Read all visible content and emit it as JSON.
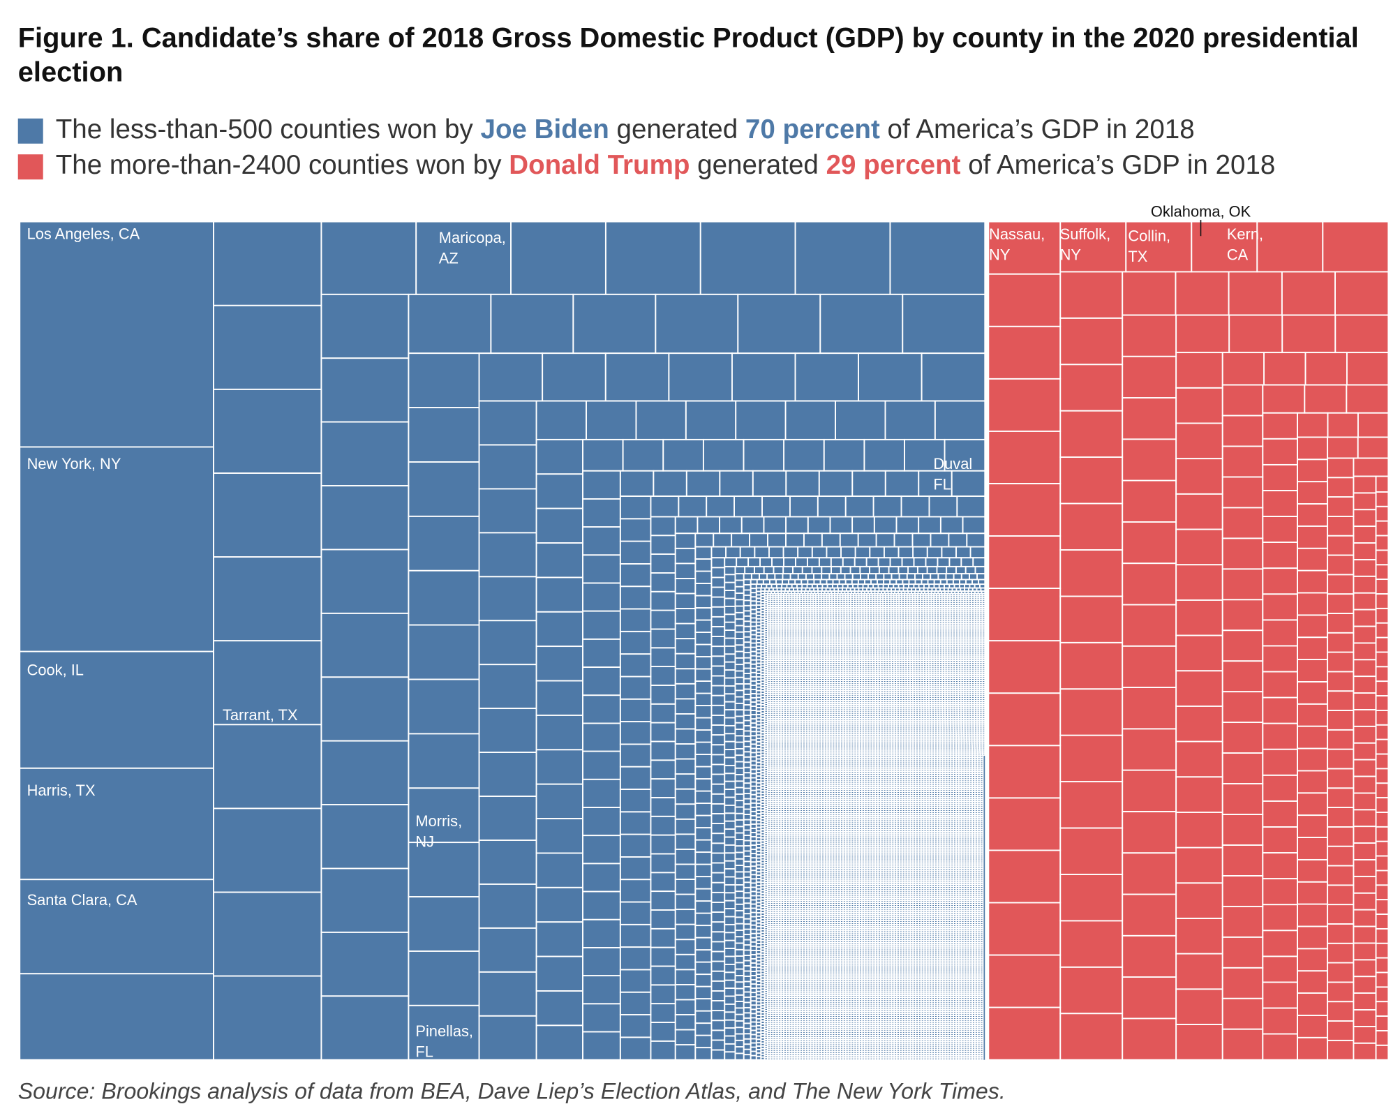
{
  "chart_data": {
    "type": "treemap",
    "title": "Figure 1. Candidate’s share of 2018 Gross Domestic Product (GDP) by county in the 2020 presidential election",
    "series": [
      {
        "name": "Joe Biden",
        "color": "#4e79a7",
        "value": 70,
        "value_label": "70 percent",
        "prefix": "The less-than-500 counties won by ",
        "middle": " generated ",
        "suffix": " of America’s GDP in 2018",
        "labels": [
          "Los Angeles, CA",
          "New York, NY",
          "Cook, IL",
          "Harris, TX",
          "Santa Clara, CA",
          "Tarrant, TX",
          "Maricopa, AZ",
          "Duval FL",
          "Morris, NJ",
          "Pinellas, FL"
        ]
      },
      {
        "name": "Donald Trump",
        "color": "#e15759",
        "value": 29,
        "value_label": "29 percent",
        "prefix": "The more-than-2400 counties won by ",
        "middle": " generated ",
        "suffix": " of America’s GDP in 2018",
        "labels": [
          "Nassau, NY",
          "Suffolk, NY",
          "Collin, TX",
          "Kern, CA",
          "Oklahoma, OK"
        ]
      }
    ],
    "source": "Source: Brookings analysis of data from BEA, Dave Liep’s Election Atlas, and The New York Times."
  }
}
